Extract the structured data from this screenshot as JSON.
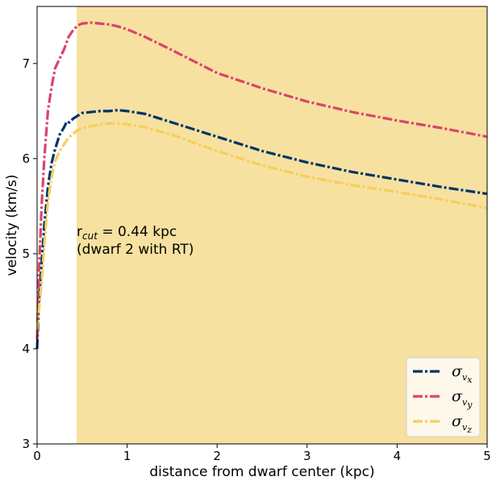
{
  "chart_data": {
    "type": "line",
    "xlabel": "distance from dwarf center (kpc)",
    "ylabel": "velocity (km/s)",
    "xlim": [
      0,
      5
    ],
    "ylim": [
      3,
      7.6
    ],
    "xticks": [
      "0",
      "1",
      "2",
      "3",
      "4",
      "5"
    ],
    "yticks": [
      "3",
      "4",
      "5",
      "6",
      "7"
    ],
    "grid": false,
    "legend_position": "bottom-right",
    "shaded_region": {
      "x_start": 0.44,
      "x_end": 5,
      "color": "#f7e1a0"
    },
    "annotation": {
      "line1_prefix": "r",
      "line1_sub": "cut",
      "line1_rest": " = 0.44 kpc",
      "line2": "(dwarf 2 with RT)"
    },
    "series": [
      {
        "name": "σ_vx",
        "legend_symbol": "σ",
        "legend_sub": "v",
        "legend_subsub": "x",
        "color": "#003366",
        "x": [
          0.0,
          0.02,
          0.05,
          0.08,
          0.12,
          0.16,
          0.2,
          0.25,
          0.3,
          0.33,
          0.36,
          0.4,
          0.45,
          0.5,
          0.6,
          0.7,
          0.8,
          0.9,
          1.0,
          1.2,
          1.5,
          2.0,
          2.5,
          3.0,
          3.5,
          4.0,
          4.5,
          5.0
        ],
        "y": [
          4.0,
          4.5,
          4.9,
          5.3,
          5.7,
          5.95,
          6.1,
          6.25,
          6.33,
          6.39,
          6.38,
          6.42,
          6.45,
          6.48,
          6.49,
          6.5,
          6.5,
          6.51,
          6.5,
          6.47,
          6.38,
          6.23,
          6.08,
          5.96,
          5.86,
          5.78,
          5.7,
          5.63
        ]
      },
      {
        "name": "σ_vy",
        "legend_symbol": "σ",
        "legend_sub": "v",
        "legend_subsub": "y",
        "color": "#d9456a",
        "x": [
          0.0,
          0.02,
          0.05,
          0.08,
          0.12,
          0.16,
          0.2,
          0.25,
          0.3,
          0.35,
          0.4,
          0.45,
          0.5,
          0.6,
          0.7,
          0.8,
          0.9,
          1.0,
          1.2,
          1.5,
          2.0,
          2.5,
          3.0,
          3.5,
          4.0,
          4.5,
          5.0
        ],
        "y": [
          4.1,
          4.8,
          5.5,
          6.0,
          6.5,
          6.75,
          6.95,
          7.05,
          7.15,
          7.28,
          7.35,
          7.4,
          7.42,
          7.43,
          7.42,
          7.41,
          7.39,
          7.36,
          7.28,
          7.14,
          6.9,
          6.74,
          6.6,
          6.49,
          6.4,
          6.32,
          6.23
        ]
      },
      {
        "name": "σ_vz",
        "legend_symbol": "σ",
        "legend_sub": "v",
        "legend_subsub": "z",
        "color": "#f5cf5a",
        "x": [
          0.0,
          0.02,
          0.05,
          0.08,
          0.12,
          0.16,
          0.2,
          0.25,
          0.3,
          0.35,
          0.4,
          0.45,
          0.5,
          0.6,
          0.7,
          0.8,
          0.9,
          1.0,
          1.2,
          1.5,
          2.0,
          2.5,
          3.0,
          3.5,
          4.0,
          4.5,
          5.0
        ],
        "y": [
          4.2,
          4.4,
          4.7,
          5.1,
          5.55,
          5.8,
          5.97,
          6.08,
          6.15,
          6.22,
          6.26,
          6.3,
          6.32,
          6.34,
          6.36,
          6.37,
          6.37,
          6.36,
          6.33,
          6.25,
          6.08,
          5.93,
          5.81,
          5.72,
          5.65,
          5.57,
          5.48
        ]
      }
    ]
  }
}
